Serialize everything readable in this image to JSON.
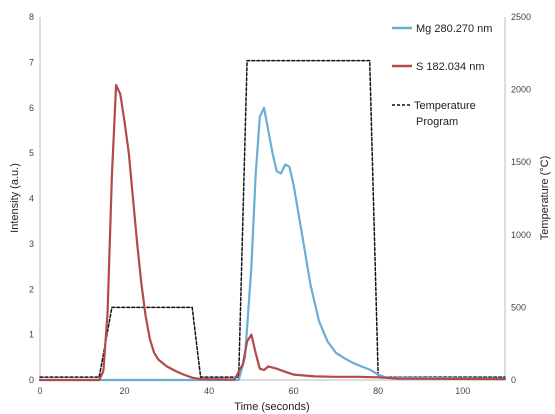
{
  "chart_data": {
    "type": "line",
    "title": "",
    "xlabel": "Time (seconds)",
    "ylabel": "Intensity (a.u.)",
    "y2label": "Temperature (°C)",
    "xlim": [
      0,
      110
    ],
    "ylim": [
      0,
      8
    ],
    "y2lim": [
      0,
      2500
    ],
    "x_ticks": [
      "0",
      "20",
      "40",
      "60",
      "80",
      "100"
    ],
    "y_ticks": [
      "0",
      "1",
      "2",
      "3",
      "4",
      "5",
      "6",
      "7",
      "8"
    ],
    "y2_ticks": [
      "0",
      "500",
      "1000",
      "1500",
      "2000",
      "2500"
    ],
    "grid": false,
    "legend_position": "top-right",
    "series": [
      {
        "name": "Mg 280.270 nm",
        "axis": "left",
        "color": "#6aaed6",
        "style": "solid",
        "x": [
          0,
          47,
          48.5,
          50,
          51,
          52,
          53,
          54,
          55,
          56,
          57,
          58,
          59,
          60,
          62,
          64,
          66,
          68,
          70,
          72,
          74,
          76,
          78,
          80,
          82,
          110
        ],
        "y": [
          0,
          0,
          0.5,
          2.5,
          4.5,
          5.8,
          6.0,
          5.5,
          5.0,
          4.6,
          4.55,
          4.75,
          4.7,
          4.3,
          3.2,
          2.1,
          1.3,
          0.85,
          0.6,
          0.48,
          0.38,
          0.3,
          0.23,
          0.12,
          0.05,
          0.03
        ]
      },
      {
        "name": "S 182.034 nm",
        "axis": "left",
        "color": "#b34a4a",
        "style": "solid",
        "x": [
          0,
          14,
          15,
          16,
          17,
          18,
          19,
          20,
          21,
          22,
          23,
          24,
          25,
          26,
          27,
          28,
          30,
          32,
          34,
          36,
          38,
          46,
          48,
          49,
          50,
          51,
          52,
          53,
          54,
          56,
          58,
          60,
          65,
          70,
          75,
          80,
          85,
          110
        ],
        "y": [
          0,
          0,
          0.2,
          1.5,
          4.5,
          6.5,
          6.3,
          5.7,
          5.0,
          4.0,
          3.0,
          2.1,
          1.4,
          0.9,
          0.6,
          0.45,
          0.3,
          0.2,
          0.12,
          0.05,
          0.02,
          0.01,
          0.35,
          0.85,
          1.0,
          0.6,
          0.25,
          0.22,
          0.3,
          0.25,
          0.18,
          0.12,
          0.08,
          0.07,
          0.07,
          0.06,
          0.03,
          0.02
        ]
      },
      {
        "name": "Temperature Program",
        "name_lines": [
          "Temperature",
          "Program"
        ],
        "axis": "right",
        "color": "#111111",
        "style": "dashed",
        "x": [
          0,
          14,
          17,
          36,
          38,
          47,
          49,
          78,
          80,
          110
        ],
        "y": [
          20,
          20,
          500,
          500,
          20,
          20,
          2200,
          2200,
          20,
          20
        ]
      }
    ]
  }
}
